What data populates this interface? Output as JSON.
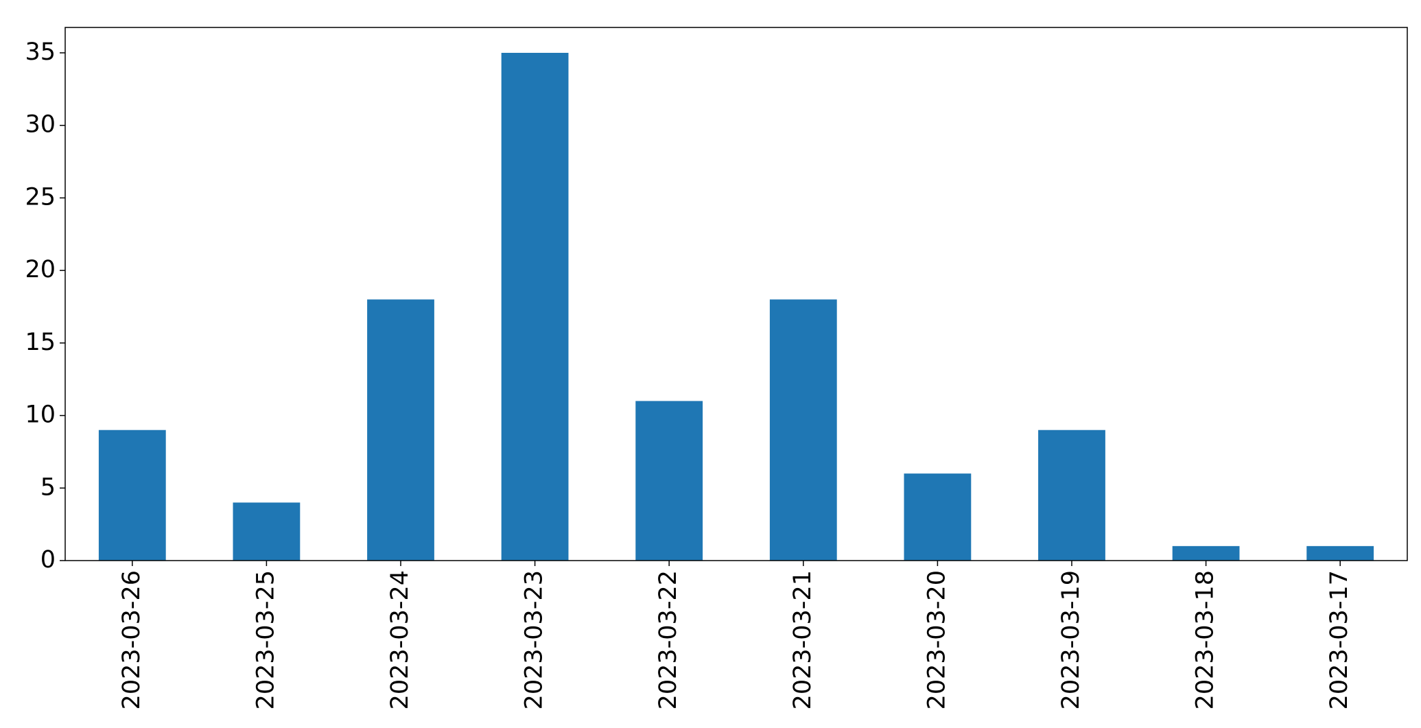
{
  "chart_data": {
    "type": "bar",
    "categories": [
      "2023-03-26",
      "2023-03-25",
      "2023-03-24",
      "2023-03-23",
      "2023-03-22",
      "2023-03-21",
      "2023-03-20",
      "2023-03-19",
      "2023-03-18",
      "2023-03-17"
    ],
    "values": [
      9,
      4,
      18,
      35,
      11,
      18,
      6,
      9,
      1,
      1
    ],
    "color": "#1f77b4",
    "ylim": [
      0,
      36.75
    ],
    "yticks": [
      0,
      5,
      10,
      15,
      20,
      25,
      30,
      35
    ],
    "grid": false
  }
}
